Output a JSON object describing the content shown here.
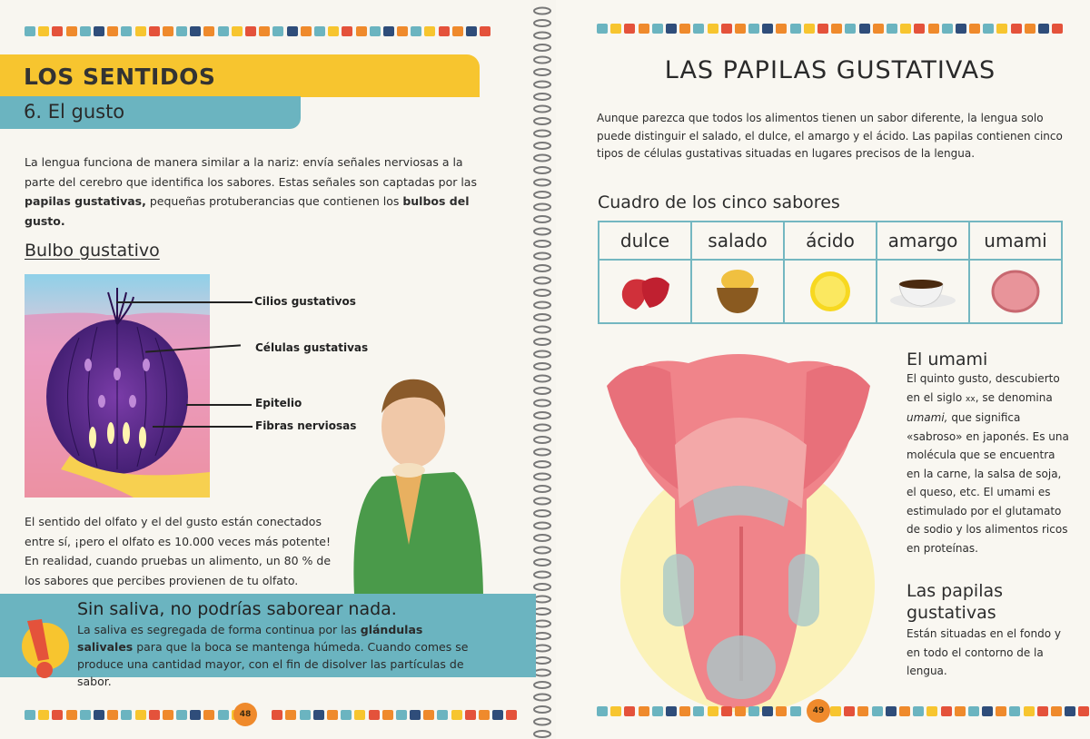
{
  "palette": [
    "#6bb4c0",
    "#f7c52f",
    "#e4523b",
    "#ef8a2c",
    "#6bb4c0",
    "#2f4d7a",
    "#ef8a2c",
    "#6bb4c0",
    "#f7c52f",
    "#e4523b",
    "#ef8a2c",
    "#6bb4c0",
    "#2f4d7a",
    "#ef8a2c",
    "#6bb4c0",
    "#f7c52f",
    "#e4523b",
    "#ef8a2c",
    "#6bb4c0",
    "#2f4d7a",
    "#ef8a2c",
    "#6bb4c0",
    "#f7c52f",
    "#e4523b",
    "#ef8a2c",
    "#6bb4c0",
    "#2f4d7a",
    "#ef8a2c",
    "#6bb4c0",
    "#f7c52f",
    "#e4523b",
    "#ef8a2c",
    "#2f4d7a",
    "#e4523b",
    "#ef8a2c",
    "#6bb4c0"
  ],
  "left": {
    "section": "LOS SENTIDOS",
    "subsection": "6. El gusto",
    "intro": {
      "t1": "La lengua funciona de manera similar a la nariz: envía señales nerviosas a la parte del cerebro que identifica los sabores. Estas señales son captadas por las ",
      "b1": "papilas gustativas,",
      "t2": " pequeñas protuberancias que contienen los ",
      "b2": "bulbos del gusto."
    },
    "diagram_title": "Bulbo gustativo",
    "labels": [
      "Cilios gustativos",
      "Células gustativas",
      "Epitelio",
      "Fibras nerviosas"
    ],
    "olfato": "El sentido del olfato y el del gusto están conectados entre sí, ¡pero el olfato es 10.000 veces más potente! En realidad, cuando pruebas un alimento, un 80 % de los sabores que percibes provienen de tu olfato.",
    "alert": {
      "title": "Sin saliva, no podrías saborear nada.",
      "t1": "La saliva es segregada de forma continua por las ",
      "b1": "glándulas salivales",
      "t2": " para que la boca se mantenga húmeda. Cuando comes se produce una cantidad mayor, con el fin de disolver las partículas de sabor."
    },
    "page_number": "48"
  },
  "right": {
    "title": "LAS PAPILAS GUSTATIVAS",
    "intro": "Aunque parezca que todos los alimentos tienen un sabor diferente, la lengua solo puede distinguir el salado, el dulce, el amargo y el ácido. Las papilas contienen cinco tipos de células gustativas situadas en lugares precisos de la lengua.",
    "table_title": "Cuadro de los cinco sabores",
    "flavors": [
      {
        "label": "dulce",
        "icon": "strawberry-icon"
      },
      {
        "label": "salado",
        "icon": "chips-bowl-icon"
      },
      {
        "label": "ácido",
        "icon": "lemon-icon"
      },
      {
        "label": "amargo",
        "icon": "coffee-cup-icon"
      },
      {
        "label": "umami",
        "icon": "ham-icon"
      }
    ],
    "umami": {
      "title": "El umami",
      "t1": "El quinto gusto, descubierto en el siglo ",
      "sc": "xx",
      "t2": ", se denomina ",
      "em": "umami,",
      "t3": " que significa «sabroso» en japonés. Es una molécula que se encuentra en la carne, la salsa de soja, el queso, etc. El umami es estimulado por el glutamato de sodio y los alimentos ricos en proteínas."
    },
    "papilas": {
      "title": "Las papilas gustativas",
      "text": "Están situadas en el fondo y en todo el contorno de la lengua."
    },
    "page_number": "49"
  }
}
